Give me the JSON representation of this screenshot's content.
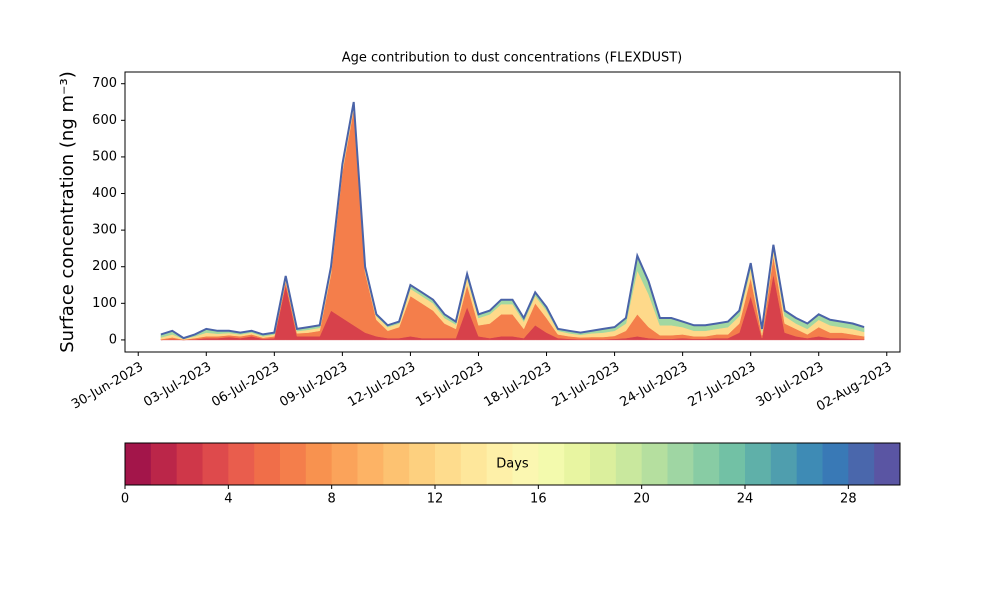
{
  "chart_data": {
    "type": "stackedarea",
    "title": "Age contribution to dust concentrations (FLEXDUST)",
    "ylabel": "Surface concentration (ng m⁻³)",
    "x": [
      "2023-07-01T00:00",
      "2023-07-01T12:00",
      "2023-07-02T00:00",
      "2023-07-02T12:00",
      "2023-07-03T00:00",
      "2023-07-03T12:00",
      "2023-07-04T00:00",
      "2023-07-04T12:00",
      "2023-07-05T00:00",
      "2023-07-05T12:00",
      "2023-07-06T00:00",
      "2023-07-06T12:00",
      "2023-07-07T00:00",
      "2023-07-07T12:00",
      "2023-07-08T00:00",
      "2023-07-08T12:00",
      "2023-07-09T00:00",
      "2023-07-09T12:00",
      "2023-07-10T00:00",
      "2023-07-10T12:00",
      "2023-07-11T00:00",
      "2023-07-11T12:00",
      "2023-07-12T00:00",
      "2023-07-12T12:00",
      "2023-07-13T00:00",
      "2023-07-13T12:00",
      "2023-07-14T00:00",
      "2023-07-14T12:00",
      "2023-07-15T00:00",
      "2023-07-15T12:00",
      "2023-07-16T00:00",
      "2023-07-16T12:00",
      "2023-07-17T00:00",
      "2023-07-17T12:00",
      "2023-07-18T00:00",
      "2023-07-18T12:00",
      "2023-07-19T00:00",
      "2023-07-19T12:00",
      "2023-07-20T00:00",
      "2023-07-20T12:00",
      "2023-07-21T00:00",
      "2023-07-21T12:00",
      "2023-07-22T00:00",
      "2023-07-22T12:00",
      "2023-07-23T00:00",
      "2023-07-23T12:00",
      "2023-07-24T00:00",
      "2023-07-24T12:00",
      "2023-07-25T00:00",
      "2023-07-25T12:00",
      "2023-07-26T00:00",
      "2023-07-26T12:00",
      "2023-07-27T00:00",
      "2023-07-27T12:00",
      "2023-07-28T00:00",
      "2023-07-28T12:00",
      "2023-07-29T00:00",
      "2023-07-29T12:00",
      "2023-07-30T00:00",
      "2023-07-30T12:00",
      "2023-07-31T00:00",
      "2023-07-31T12:00",
      "2023-08-01T00:00"
    ],
    "series": [
      {
        "color": "#d7414b",
        "values": [
          0,
          2,
          0,
          2,
          5,
          5,
          8,
          5,
          10,
          3,
          5,
          150,
          10,
          10,
          10,
          80,
          60,
          40,
          20,
          10,
          5,
          5,
          10,
          5,
          5,
          5,
          5,
          90,
          10,
          5,
          10,
          10,
          5,
          40,
          20,
          5,
          3,
          2,
          2,
          2,
          3,
          5,
          10,
          5,
          3,
          3,
          5,
          3,
          3,
          5,
          5,
          20,
          120,
          5,
          180,
          20,
          10,
          5,
          10,
          5,
          5,
          3,
          2
        ]
      },
      {
        "color": "#f47e4b",
        "values": [
          2,
          5,
          1,
          3,
          5,
          5,
          5,
          5,
          5,
          3,
          5,
          10,
          8,
          10,
          15,
          100,
          400,
          590,
          165,
          45,
          20,
          30,
          110,
          95,
          75,
          40,
          25,
          60,
          30,
          40,
          60,
          60,
          25,
          60,
          40,
          10,
          7,
          5,
          6,
          6,
          8,
          20,
          60,
          30,
          10,
          10,
          10,
          7,
          7,
          10,
          10,
          25,
          50,
          8,
          50,
          25,
          20,
          10,
          25,
          15,
          15,
          12,
          8
        ]
      },
      {
        "color": "#fed98a",
        "values": [
          5,
          8,
          2,
          5,
          10,
          7,
          6,
          5,
          5,
          4,
          5,
          8,
          6,
          8,
          8,
          12,
          12,
          12,
          10,
          10,
          10,
          10,
          20,
          20,
          20,
          15,
          12,
          20,
          20,
          25,
          28,
          28,
          20,
          20,
          20,
          10,
          8,
          7,
          10,
          12,
          14,
          20,
          120,
          90,
          27,
          27,
          20,
          15,
          15,
          15,
          20,
          20,
          25,
          10,
          20,
          20,
          15,
          15,
          20,
          20,
          15,
          15,
          12
        ]
      },
      {
        "color": "#a2d8a1",
        "values": [
          8,
          10,
          2,
          5,
          10,
          8,
          6,
          5,
          5,
          5,
          5,
          7,
          6,
          7,
          7,
          8,
          8,
          8,
          5,
          5,
          5,
          5,
          10,
          10,
          10,
          10,
          8,
          10,
          10,
          10,
          12,
          12,
          10,
          10,
          10,
          5,
          7,
          6,
          7,
          10,
          10,
          15,
          40,
          35,
          20,
          20,
          15,
          15,
          15,
          15,
          15,
          15,
          15,
          7,
          10,
          15,
          15,
          15,
          15,
          15,
          15,
          15,
          13
        ]
      }
    ],
    "edge_color": "#4a63a8",
    "xlim": [
      "2023-06-29T10:00",
      "2023-08-02T14:00"
    ],
    "xticks": [
      {
        "value": "2023-06-30",
        "label": "30-Jun-2023"
      },
      {
        "value": "2023-07-03",
        "label": "03-Jul-2023"
      },
      {
        "value": "2023-07-06",
        "label": "06-Jul-2023"
      },
      {
        "value": "2023-07-09",
        "label": "09-Jul-2023"
      },
      {
        "value": "2023-07-12",
        "label": "12-Jul-2023"
      },
      {
        "value": "2023-07-15",
        "label": "15-Jul-2023"
      },
      {
        "value": "2023-07-18",
        "label": "18-Jul-2023"
      },
      {
        "value": "2023-07-21",
        "label": "21-Jul-2023"
      },
      {
        "value": "2023-07-24",
        "label": "24-Jul-2023"
      },
      {
        "value": "2023-07-27",
        "label": "27-Jul-2023"
      },
      {
        "value": "2023-07-30",
        "label": "30-Jul-2023"
      },
      {
        "value": "2023-08-02",
        "label": "02-Aug-2023"
      }
    ],
    "ylim": [
      -33,
      732
    ],
    "yticks": [
      0,
      100,
      200,
      300,
      400,
      500,
      600,
      700
    ],
    "colorbar": {
      "label": "Days",
      "lim": [
        0,
        30
      ],
      "ticks": [
        0,
        4,
        8,
        12,
        16,
        20,
        24,
        28
      ],
      "colors": [
        "#a3154a",
        "#bb2649",
        "#cf3749",
        "#de4a4c",
        "#e95d4d",
        "#f06e49",
        "#f47e4b",
        "#f8924f",
        "#fba35a",
        "#fdb365",
        "#fdc271",
        "#fdd07f",
        "#fedc8d",
        "#fee79b",
        "#fef0a8",
        "#fbf7b1",
        "#f3faad",
        "#e8f5a1",
        "#dbef9d",
        "#c9e89e",
        "#b5df9f",
        "#9fd6a3",
        "#88cca4",
        "#72c1a5",
        "#5fb0a9",
        "#4f9eae",
        "#3e8bb5",
        "#3979b6",
        "#4a67ac",
        "#5a55a3"
      ]
    }
  }
}
